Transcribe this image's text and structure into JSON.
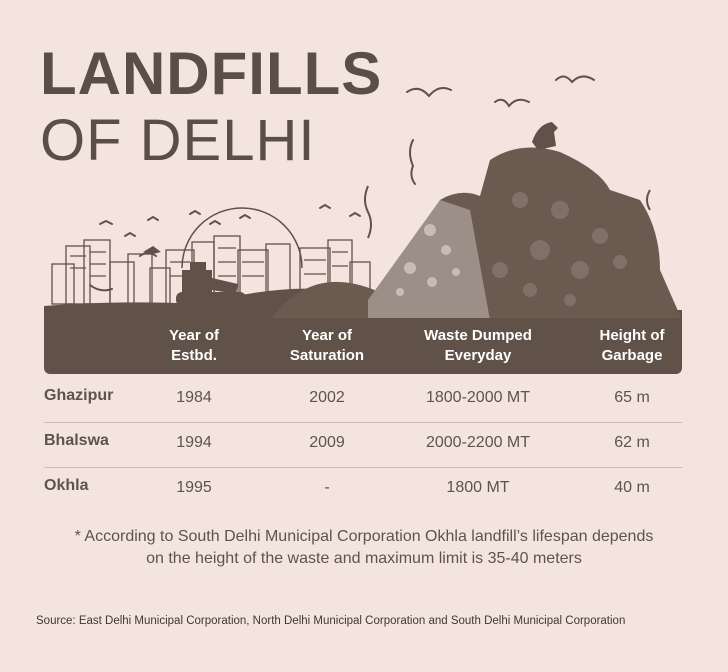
{
  "title": {
    "line1": "LANDFILLS",
    "line2": "OF DELHI"
  },
  "table": {
    "headers": [
      [
        "Year of",
        "Estbd."
      ],
      [
        "Year of",
        "Saturation"
      ],
      [
        "Waste Dumped",
        "Everyday"
      ],
      [
        "Height of",
        "Garbage"
      ]
    ],
    "rows": [
      {
        "name": "Ghazipur",
        "estbd": "1984",
        "saturation": "2002",
        "waste": "1800-2000 MT",
        "height": "65 m"
      },
      {
        "name": "Bhalswa",
        "estbd": "1994",
        "saturation": "2009",
        "waste": "2000-2200 MT",
        "height": "62 m"
      },
      {
        "name": "Okhla",
        "estbd": "1995",
        "saturation": "-",
        "waste": "1800 MT",
        "height": "40 m"
      }
    ]
  },
  "note": {
    "line1": "* According to South Delhi Municipal Corporation Okhla landfill’s lifespan depends",
    "line2": "on the height of the waste and maximum limit is 35-40 meters"
  },
  "source": "Source: East Delhi Municipal Corporation, North Delhi Municipal Corporation and South Delhi Municipal Corporation",
  "colors": {
    "background": "#f4e4df",
    "header": "#615249",
    "text": "#5e534c"
  }
}
